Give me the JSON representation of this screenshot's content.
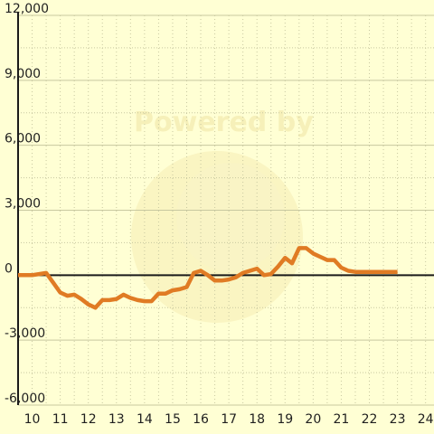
{
  "watermark": {
    "text": "Powered by"
  },
  "colors": {
    "background": "#ffffd4",
    "line": "#e07b24",
    "axis": "#1a1a1a",
    "grid": "#c8c8a0"
  },
  "chart_data": {
    "type": "line",
    "title": "",
    "xlabel": "",
    "ylabel": "",
    "xlim": [
      9.5,
      24.3
    ],
    "ylim": [
      -6000,
      12000
    ],
    "x_ticks": [
      10,
      11,
      12,
      13,
      14,
      15,
      16,
      17,
      18,
      19,
      20,
      21,
      22,
      23,
      24
    ],
    "x_tick_labels": [
      "10",
      "11",
      "12",
      "13",
      "14",
      "15",
      "16",
      "17",
      "18",
      "19",
      "20",
      "21",
      "22",
      "23",
      "24"
    ],
    "y_ticks": [
      -6000,
      -3000,
      0,
      3000,
      6000,
      9000,
      12000
    ],
    "y_tick_labels": [
      "-6,000",
      "-3,000",
      "0",
      "3,000",
      "6,000",
      "9,000",
      "12,000"
    ],
    "grid": true,
    "series": [
      {
        "points": [
          [
            9.5,
            0
          ],
          [
            10.0,
            0
          ],
          [
            10.25,
            50
          ],
          [
            10.5,
            100
          ],
          [
            10.75,
            -350
          ],
          [
            11.0,
            -800
          ],
          [
            11.25,
            -950
          ],
          [
            11.5,
            -900
          ],
          [
            11.75,
            -1100
          ],
          [
            12.0,
            -1350
          ],
          [
            12.25,
            -1500
          ],
          [
            12.5,
            -1150
          ],
          [
            12.75,
            -1150
          ],
          [
            13.0,
            -1100
          ],
          [
            13.25,
            -900
          ],
          [
            13.5,
            -1050
          ],
          [
            13.75,
            -1150
          ],
          [
            14.0,
            -1200
          ],
          [
            14.25,
            -1200
          ],
          [
            14.5,
            -850
          ],
          [
            14.75,
            -850
          ],
          [
            15.0,
            -700
          ],
          [
            15.25,
            -650
          ],
          [
            15.5,
            -550
          ],
          [
            15.75,
            100
          ],
          [
            16.0,
            200
          ],
          [
            16.25,
            0
          ],
          [
            16.5,
            -250
          ],
          [
            16.75,
            -250
          ],
          [
            17.0,
            -200
          ],
          [
            17.25,
            -100
          ],
          [
            17.5,
            100
          ],
          [
            17.75,
            200
          ],
          [
            18.0,
            300
          ],
          [
            18.25,
            0
          ],
          [
            18.5,
            50
          ],
          [
            18.75,
            400
          ],
          [
            19.0,
            800
          ],
          [
            19.25,
            550
          ],
          [
            19.5,
            1250
          ],
          [
            19.75,
            1250
          ],
          [
            20.0,
            1000
          ],
          [
            20.25,
            850
          ],
          [
            20.5,
            700
          ],
          [
            20.75,
            700
          ],
          [
            21.0,
            350
          ],
          [
            21.25,
            200
          ],
          [
            21.5,
            150
          ],
          [
            21.75,
            150
          ],
          [
            22.0,
            150
          ],
          [
            22.25,
            150
          ],
          [
            22.5,
            150
          ],
          [
            22.75,
            150
          ],
          [
            23.0,
            150
          ]
        ]
      }
    ]
  }
}
